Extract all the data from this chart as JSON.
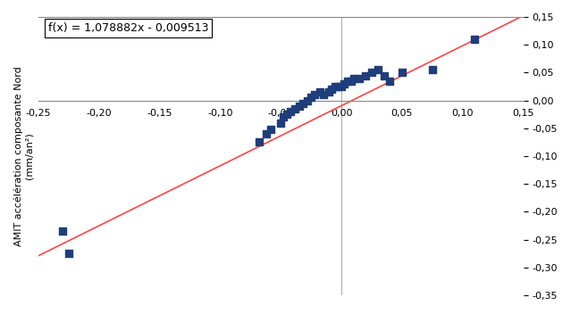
{
  "scatter_x": [
    -0.23,
    -0.225,
    -0.068,
    -0.062,
    -0.058,
    -0.05,
    -0.048,
    -0.045,
    -0.042,
    -0.038,
    -0.035,
    -0.032,
    -0.028,
    -0.025,
    -0.022,
    -0.018,
    -0.015,
    -0.01,
    -0.008,
    -0.005,
    -0.003,
    0.0,
    0.002,
    0.005,
    0.008,
    0.01,
    0.015,
    0.02,
    0.025,
    0.03,
    0.035,
    0.04,
    0.05,
    0.075,
    0.11
  ],
  "scatter_y": [
    -0.235,
    -0.275,
    -0.075,
    -0.06,
    -0.052,
    -0.04,
    -0.03,
    -0.025,
    -0.02,
    -0.015,
    -0.01,
    -0.005,
    0.0,
    0.005,
    0.01,
    0.015,
    0.01,
    0.015,
    0.02,
    0.025,
    0.025,
    0.025,
    0.03,
    0.035,
    0.035,
    0.04,
    0.04,
    0.045,
    0.05,
    0.055,
    0.045,
    0.035,
    0.05,
    0.055,
    0.11
  ],
  "slope": 1.078882,
  "intercept": -0.009513,
  "equation": "f(x) = 1,078882x - 0,009513",
  "line_color": "#FF4444",
  "scatter_color": "#1F3D7A",
  "xlim": [
    -0.25,
    0.15
  ],
  "ylim": [
    -0.35,
    0.15
  ],
  "xticks": [
    -0.25,
    -0.2,
    -0.15,
    -0.1,
    -0.05,
    0.0,
    0.05,
    0.1,
    0.15
  ],
  "yticks": [
    -0.35,
    -0.3,
    -0.25,
    -0.2,
    -0.15,
    -0.1,
    -0.05,
    0.0,
    0.05,
    0.1,
    0.15
  ],
  "ylabel": "AMIT accélération composante Nord\n(mm/an²)",
  "equation_fontsize": 9,
  "marker_size": 28,
  "bg_color": "#FFFFFF",
  "spine_color": "#888888"
}
